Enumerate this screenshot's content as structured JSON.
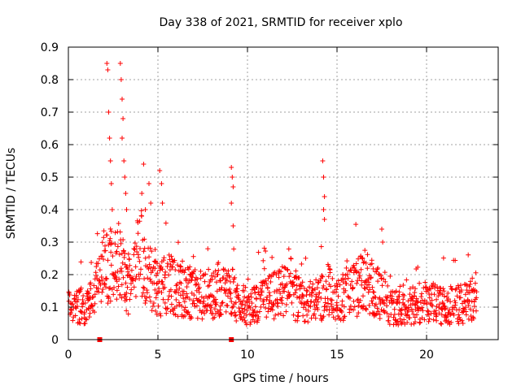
{
  "chart_data": {
    "type": "scatter",
    "title": "Day 338 of 2021, SRMTID for receiver xplo",
    "xlabel": "GPS time / hours",
    "ylabel": "SRMTID / TECUs",
    "xlim": [
      0,
      24
    ],
    "ylim": [
      0,
      0.9
    ],
    "xticks": [
      0,
      5,
      10,
      15,
      20
    ],
    "xtick_labels": [
      "0",
      "5",
      "10",
      "15",
      "20"
    ],
    "yticks": [
      0,
      0.1,
      0.2,
      0.3,
      0.4,
      0.5,
      0.6,
      0.7,
      0.8,
      0.9
    ],
    "ytick_labels": [
      "0",
      "0.1",
      "0.2",
      "0.3",
      "0.4",
      "0.5",
      "0.6",
      "0.7",
      "0.8",
      "0.9"
    ],
    "grid": true,
    "marker": "+",
    "color": "#ff0000",
    "series": [
      {
        "name": "SRMTID",
        "baseline_envelope": [
          {
            "x": 0.0,
            "y": 0.1
          },
          {
            "x": 0.5,
            "y": 0.1
          },
          {
            "x": 1.0,
            "y": 0.1
          },
          {
            "x": 1.5,
            "y": 0.15
          },
          {
            "x": 2.0,
            "y": 0.22
          },
          {
            "x": 2.5,
            "y": 0.26
          },
          {
            "x": 3.0,
            "y": 0.22
          },
          {
            "x": 3.5,
            "y": 0.15
          },
          {
            "x": 4.0,
            "y": 0.28
          },
          {
            "x": 4.5,
            "y": 0.2
          },
          {
            "x": 5.0,
            "y": 0.15
          },
          {
            "x": 5.5,
            "y": 0.18
          },
          {
            "x": 6.0,
            "y": 0.16
          },
          {
            "x": 7.0,
            "y": 0.14
          },
          {
            "x": 8.0,
            "y": 0.14
          },
          {
            "x": 9.0,
            "y": 0.15
          },
          {
            "x": 9.5,
            "y": 0.12
          },
          {
            "x": 10.0,
            "y": 0.1
          },
          {
            "x": 11.0,
            "y": 0.12
          },
          {
            "x": 12.0,
            "y": 0.15
          },
          {
            "x": 13.0,
            "y": 0.12
          },
          {
            "x": 14.0,
            "y": 0.12
          },
          {
            "x": 14.5,
            "y": 0.16
          },
          {
            "x": 15.0,
            "y": 0.12
          },
          {
            "x": 16.0,
            "y": 0.15
          },
          {
            "x": 16.5,
            "y": 0.18
          },
          {
            "x": 17.0,
            "y": 0.16
          },
          {
            "x": 17.5,
            "y": 0.14
          },
          {
            "x": 18.0,
            "y": 0.1
          },
          {
            "x": 19.0,
            "y": 0.1
          },
          {
            "x": 20.0,
            "y": 0.12
          },
          {
            "x": 21.0,
            "y": 0.1
          },
          {
            "x": 22.0,
            "y": 0.11
          },
          {
            "x": 22.8,
            "y": 0.12
          }
        ],
        "spikes": [
          {
            "x": 2.15,
            "y": 0.85
          },
          {
            "x": 2.2,
            "y": 0.83
          },
          {
            "x": 2.25,
            "y": 0.7
          },
          {
            "x": 2.3,
            "y": 0.62
          },
          {
            "x": 2.35,
            "y": 0.55
          },
          {
            "x": 2.4,
            "y": 0.48
          },
          {
            "x": 2.45,
            "y": 0.4
          },
          {
            "x": 2.9,
            "y": 0.85
          },
          {
            "x": 2.95,
            "y": 0.8
          },
          {
            "x": 3.0,
            "y": 0.74
          },
          {
            "x": 3.05,
            "y": 0.68
          },
          {
            "x": 3.0,
            "y": 0.62
          },
          {
            "x": 3.1,
            "y": 0.55
          },
          {
            "x": 3.15,
            "y": 0.5
          },
          {
            "x": 3.2,
            "y": 0.45
          },
          {
            "x": 3.25,
            "y": 0.4
          },
          {
            "x": 4.1,
            "y": 0.45
          },
          {
            "x": 4.2,
            "y": 0.54
          },
          {
            "x": 4.3,
            "y": 0.4
          },
          {
            "x": 4.5,
            "y": 0.48
          },
          {
            "x": 4.6,
            "y": 0.42
          },
          {
            "x": 5.1,
            "y": 0.52
          },
          {
            "x": 5.2,
            "y": 0.48
          },
          {
            "x": 5.25,
            "y": 0.42
          },
          {
            "x": 9.1,
            "y": 0.53
          },
          {
            "x": 9.15,
            "y": 0.5
          },
          {
            "x": 9.2,
            "y": 0.47
          },
          {
            "x": 9.1,
            "y": 0.42
          },
          {
            "x": 9.2,
            "y": 0.35
          },
          {
            "x": 14.2,
            "y": 0.55
          },
          {
            "x": 14.25,
            "y": 0.5
          },
          {
            "x": 14.3,
            "y": 0.44
          },
          {
            "x": 14.25,
            "y": 0.4
          },
          {
            "x": 14.3,
            "y": 0.37
          },
          {
            "x": 17.5,
            "y": 0.34
          },
          {
            "x": 17.55,
            "y": 0.3
          }
        ]
      }
    ],
    "gap_markers": [
      {
        "x": 1.75,
        "y": 0.0
      },
      {
        "x": 9.1,
        "y": 0.0
      }
    ]
  }
}
